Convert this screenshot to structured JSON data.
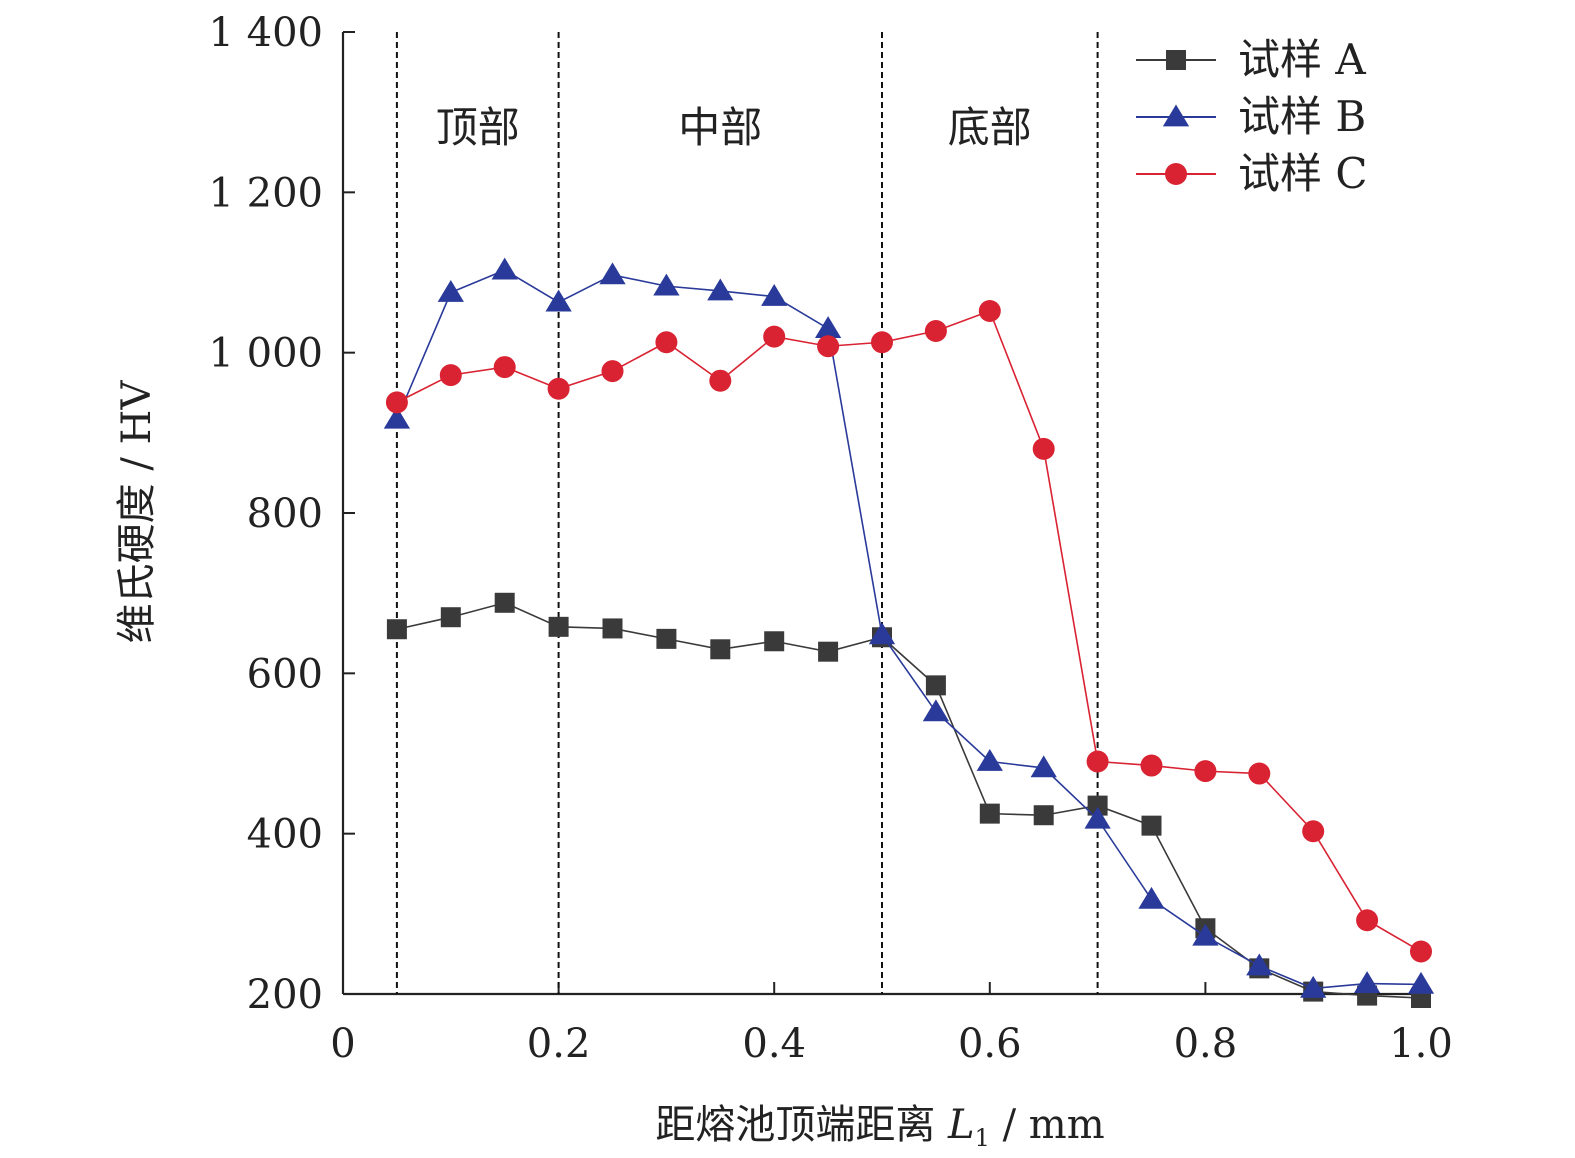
{
  "chart_data": {
    "type": "line",
    "title": "",
    "xlabel": "距熔池顶端距离",
    "xlabel_var": "L",
    "xlabel_sub": "1",
    "xlabel_unit": " / mm",
    "ylabel": "维氏硬度 / HV",
    "xlim": [
      0,
      1.0
    ],
    "ylim": [
      200,
      1400
    ],
    "xticks": [
      0,
      0.2,
      0.4,
      0.6,
      0.8,
      1.0
    ],
    "xtick_labels": [
      "0",
      "0.2",
      "0.4",
      "0.6",
      "0.8",
      "1.0"
    ],
    "yticks": [
      200,
      400,
      600,
      800,
      1000,
      1200,
      1400
    ],
    "ytick_labels": [
      "200",
      "400",
      "600",
      "800",
      "1 000",
      "1 200",
      "1 400"
    ],
    "grid": false,
    "legend_position": "top-right",
    "boundaries": [
      0.05,
      0.2,
      0.5,
      0.7
    ],
    "regions": [
      {
        "label": "顶部",
        "x": 0.125
      },
      {
        "label": "中部",
        "x": 0.35
      },
      {
        "label": "底部",
        "x": 0.6
      }
    ],
    "x": [
      0.05,
      0.1,
      0.15,
      0.2,
      0.25,
      0.3,
      0.35,
      0.4,
      0.45,
      0.5,
      0.55,
      0.6,
      0.65,
      0.7,
      0.75,
      0.8,
      0.85,
      0.9,
      0.95,
      1.0
    ],
    "series": [
      {
        "name": "试样 A",
        "marker": "square",
        "color": "#3a3a3a",
        "values": [
          655,
          670,
          688,
          658,
          656,
          643,
          630,
          640,
          627,
          645,
          585,
          425,
          423,
          435,
          410,
          282,
          232,
          203,
          198,
          195
        ]
      },
      {
        "name": "试样 B",
        "marker": "triangle",
        "color": "#2a3a9a",
        "values": [
          917,
          1075,
          1103,
          1063,
          1097,
          1083,
          1077,
          1070,
          1030,
          648,
          552,
          490,
          482,
          418,
          318,
          272,
          235,
          207,
          213,
          212
        ]
      },
      {
        "name": "试样 C",
        "marker": "circle",
        "color": "#d92232",
        "values": [
          938,
          972,
          982,
          955,
          977,
          1013,
          965,
          1020,
          1008,
          1013,
          1027,
          1052,
          880,
          490,
          485,
          478,
          475,
          403,
          292,
          253
        ]
      }
    ]
  }
}
